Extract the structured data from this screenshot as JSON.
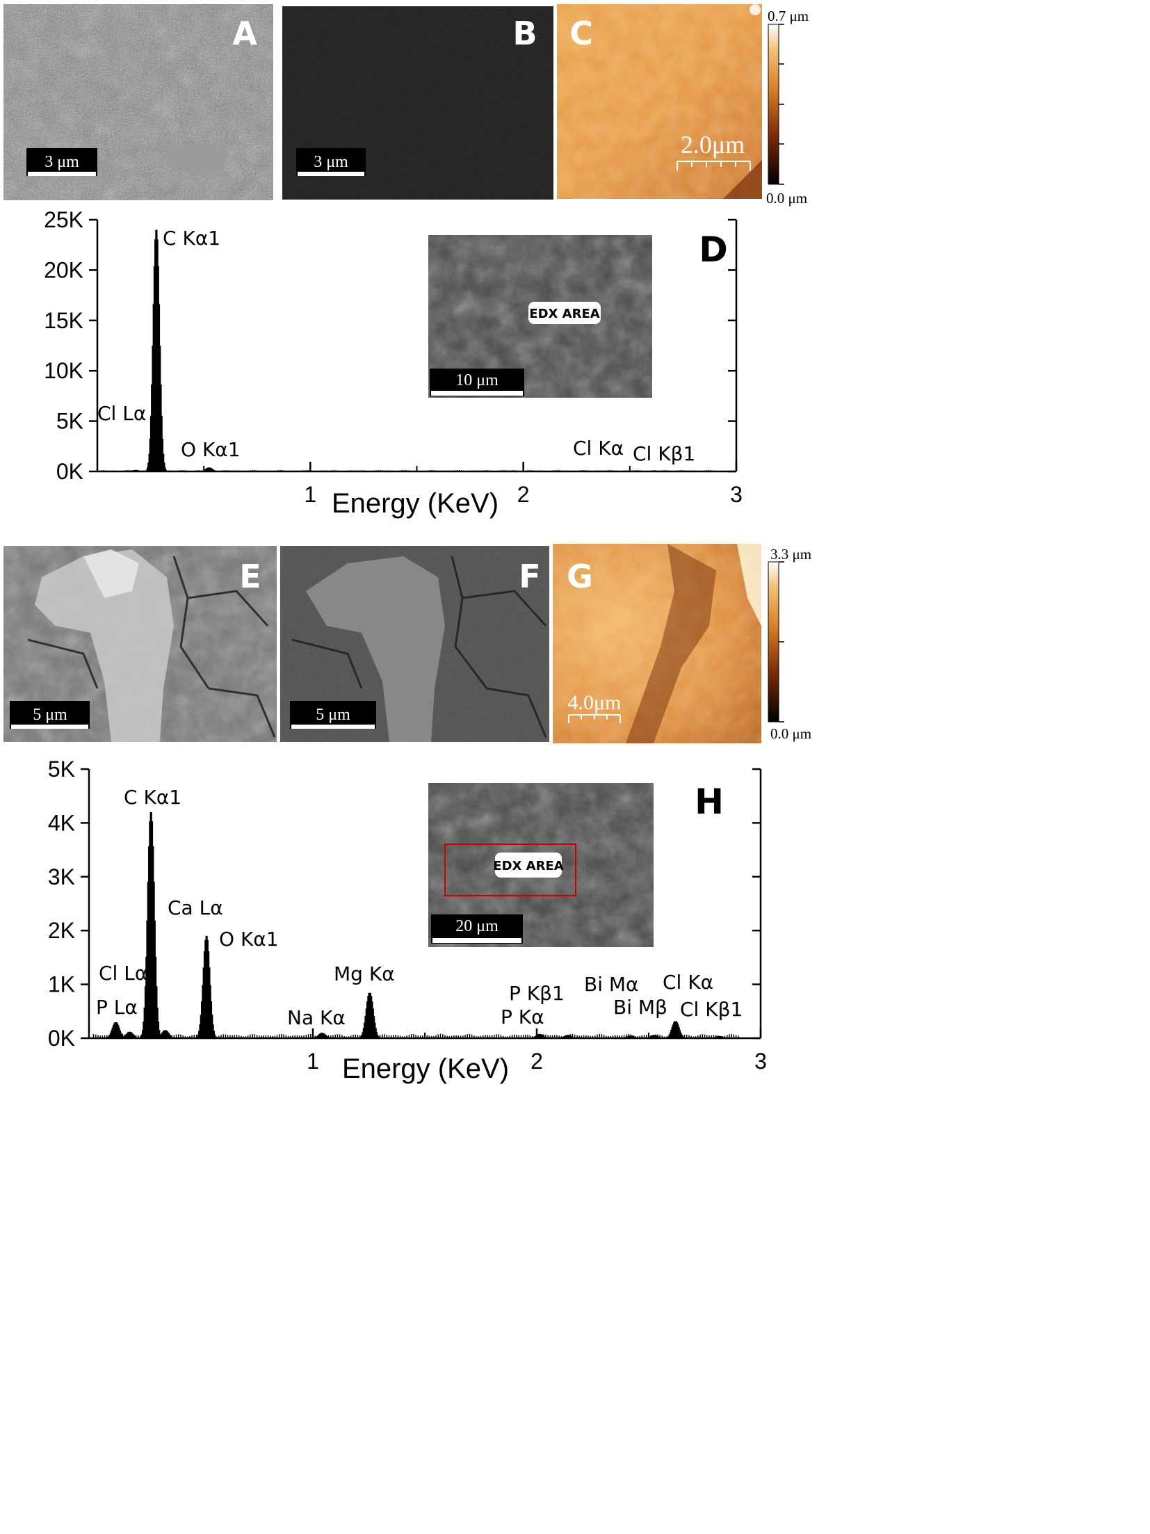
{
  "panels": {
    "A": {
      "letter": "A",
      "scalebar": "3 μm"
    },
    "B": {
      "letter": "B",
      "scalebar": "3 μm"
    },
    "C": {
      "letter": "C",
      "scalebar": "2.0μm",
      "colorbar_max": "0.7 μm",
      "colorbar_min": "0.0 μm"
    },
    "E": {
      "letter": "E",
      "scalebar": "5 μm"
    },
    "F": {
      "letter": "F",
      "scalebar": "5 μm"
    },
    "G": {
      "letter": "G",
      "scalebar": "4.0μm",
      "colorbar_max": "3.3 μm",
      "colorbar_min": "0.0 μm"
    }
  },
  "colors": {
    "afm_light": "#fbe6b0",
    "afm_mid": "#d9802a",
    "afm_dark": "#1a0500",
    "edx_box": "#cc0000"
  },
  "chart_data": [
    {
      "type": "bar",
      "panel_letter": "D",
      "xlabel": "Energy (KeV)",
      "ylabel": "",
      "xlim": [
        0,
        3
      ],
      "ylim": [
        0,
        25000
      ],
      "x_ticks": [
        "1",
        "2",
        "3"
      ],
      "y_ticks": [
        "0K",
        "5K",
        "10K",
        "15K",
        "20K",
        "25K"
      ],
      "peaks": [
        {
          "label": "C Kα1",
          "energy": 0.277,
          "counts": 24000
        },
        {
          "label": "O Kα1",
          "energy": 0.525,
          "counts": 400
        },
        {
          "label": "Cl Lα",
          "energy": 0.18,
          "counts": 150
        },
        {
          "label": "Cl Kα",
          "energy": 2.62,
          "counts": 0
        },
        {
          "label": "Cl Kβ1",
          "energy": 2.815,
          "counts": 0
        }
      ],
      "inset": {
        "label": "EDX AREA",
        "scalebar": "10 μm"
      }
    },
    {
      "type": "bar",
      "panel_letter": "H",
      "xlabel": "Energy (KeV)",
      "ylabel": "",
      "xlim": [
        0,
        3
      ],
      "ylim": [
        0,
        5000
      ],
      "x_ticks": [
        "1",
        "2",
        "3"
      ],
      "y_ticks": [
        "0K",
        "1K",
        "2K",
        "3K",
        "4K",
        "5K"
      ],
      "peaks": [
        {
          "label": "C Kα1",
          "energy": 0.277,
          "counts": 4200
        },
        {
          "label": "O Kα1",
          "energy": 0.525,
          "counts": 1900
        },
        {
          "label": "Ca Lα",
          "energy": 0.341,
          "counts": 150
        },
        {
          "label": "Cl Lα",
          "energy": 0.182,
          "counts": 120
        },
        {
          "label": "P Lα",
          "energy": 0.12,
          "counts": 300
        },
        {
          "label": "Na Kα",
          "energy": 1.041,
          "counts": 100
        },
        {
          "label": "Mg Kα",
          "energy": 1.254,
          "counts": 850
        },
        {
          "label": "P Kα",
          "energy": 2.013,
          "counts": 80
        },
        {
          "label": "P Kβ1",
          "energy": 2.139,
          "counts": 60
        },
        {
          "label": "Bi Mα",
          "energy": 2.42,
          "counts": 50
        },
        {
          "label": "Bi Mβ",
          "energy": 2.525,
          "counts": 60
        },
        {
          "label": "Cl Kα",
          "energy": 2.62,
          "counts": 320
        },
        {
          "label": "Cl Kβ1",
          "energy": 2.815,
          "counts": 40
        }
      ],
      "inset": {
        "label": "EDX AREA",
        "scalebar": "20 μm"
      }
    }
  ]
}
